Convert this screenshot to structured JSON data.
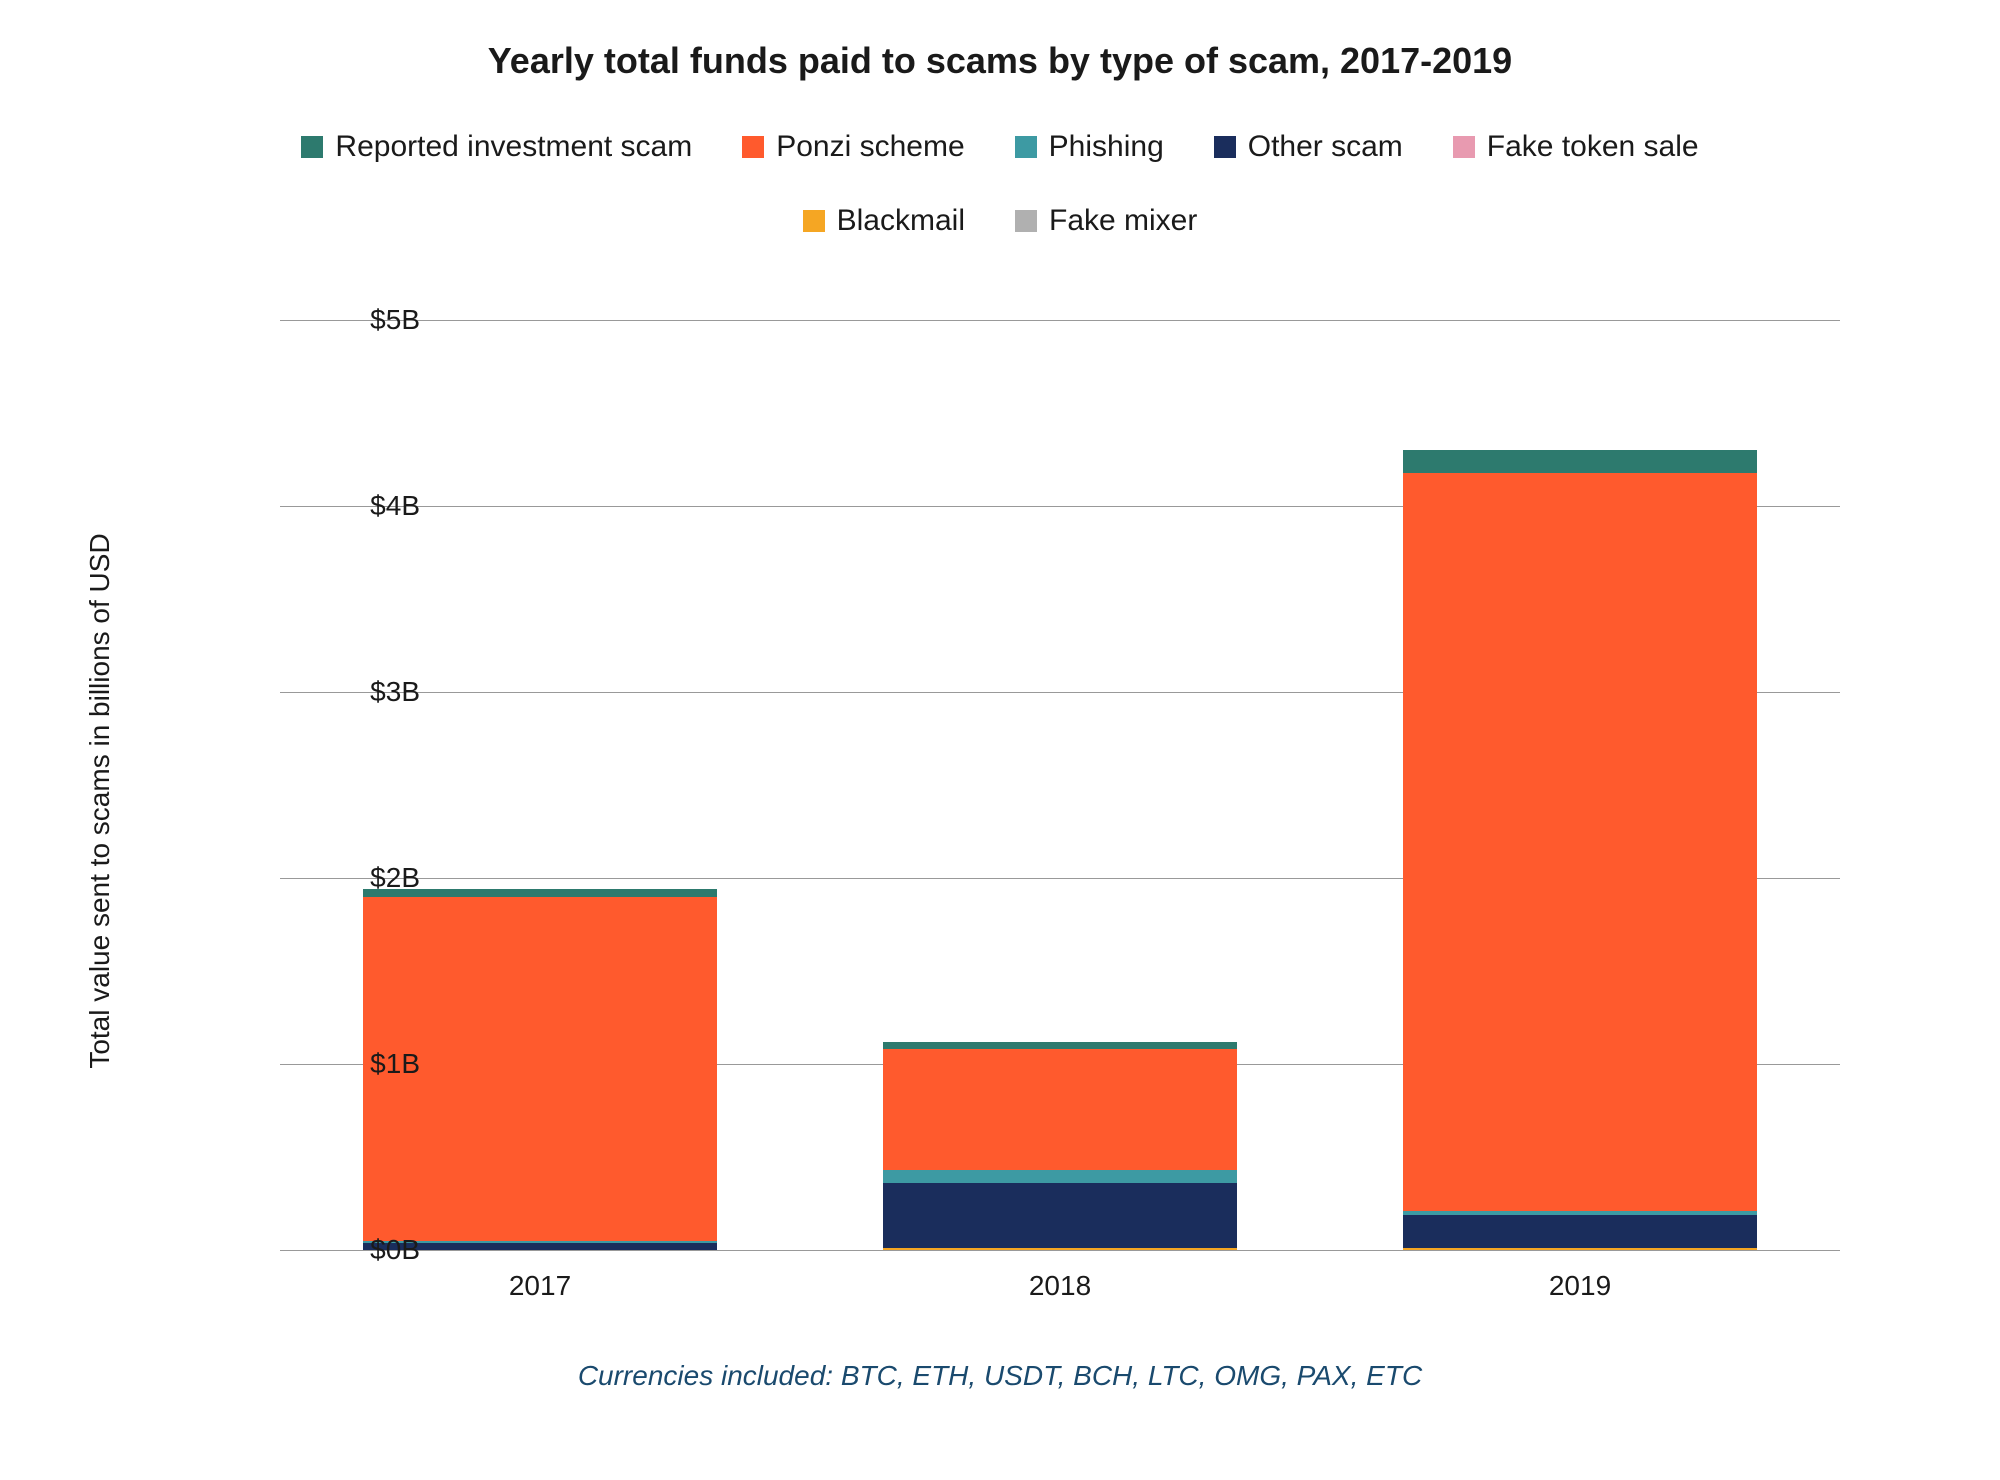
{
  "chart": {
    "type": "stacked-bar",
    "title": "Yearly total funds paid to scams by type of scam, 2017-2019",
    "title_fontsize": 36,
    "title_fontweight": 700,
    "title_color": "#1a1a1a",
    "background_color": "#ffffff",
    "grid_color": "#999999",
    "text_color": "#1a1a1a",
    "y_axis": {
      "label": "Total value sent to scams in billions of USD",
      "label_fontsize": 28,
      "min": 0,
      "max": 5,
      "tick_step": 1,
      "tick_labels": [
        "$0B",
        "$1B",
        "$2B",
        "$3B",
        "$4B",
        "$5B"
      ],
      "tick_fontsize": 28
    },
    "x_axis": {
      "categories": [
        "2017",
        "2018",
        "2019"
      ],
      "tick_fontsize": 28
    },
    "series": [
      {
        "key": "reported_investment_scam",
        "label": "Reported investment scam",
        "color": "#2d7a6e"
      },
      {
        "key": "ponzi_scheme",
        "label": "Ponzi scheme",
        "color": "#ff5a2d"
      },
      {
        "key": "phishing",
        "label": "Phishing",
        "color": "#3d9aa3"
      },
      {
        "key": "other_scam",
        "label": "Other scam",
        "color": "#1a2d5c"
      },
      {
        "key": "fake_token_sale",
        "label": "Fake token sale",
        "color": "#e89ab0"
      },
      {
        "key": "blackmail",
        "label": "Blackmail",
        "color": "#f5a623"
      },
      {
        "key": "fake_mixer",
        "label": "Fake mixer",
        "color": "#b0b0b0"
      }
    ],
    "stack_order": [
      "fake_mixer",
      "blackmail",
      "fake_token_sale",
      "other_scam",
      "phishing",
      "ponzi_scheme",
      "reported_investment_scam"
    ],
    "data": {
      "2017": {
        "reported_investment_scam": 0.04,
        "ponzi_scheme": 1.85,
        "phishing": 0.01,
        "other_scam": 0.04,
        "fake_token_sale": 0.0,
        "blackmail": 0.0,
        "fake_mixer": 0.0
      },
      "2018": {
        "reported_investment_scam": 0.04,
        "ponzi_scheme": 0.65,
        "phishing": 0.07,
        "other_scam": 0.35,
        "fake_token_sale": 0.0,
        "blackmail": 0.01,
        "fake_mixer": 0.0
      },
      "2019": {
        "reported_investment_scam": 0.12,
        "ponzi_scheme": 3.97,
        "phishing": 0.02,
        "other_scam": 0.18,
        "fake_token_sale": 0.0,
        "blackmail": 0.01,
        "fake_mixer": 0.0
      }
    },
    "bar_width_ratio": 0.68,
    "legend_fontsize": 30,
    "legend_swatch_size": 22
  },
  "footnote": {
    "text": "Currencies included: BTC, ETH, USDT, BCH, LTC, OMG, PAX, ETC",
    "fontsize": 28,
    "fontstyle": "italic",
    "color": "#1a4a6e"
  }
}
